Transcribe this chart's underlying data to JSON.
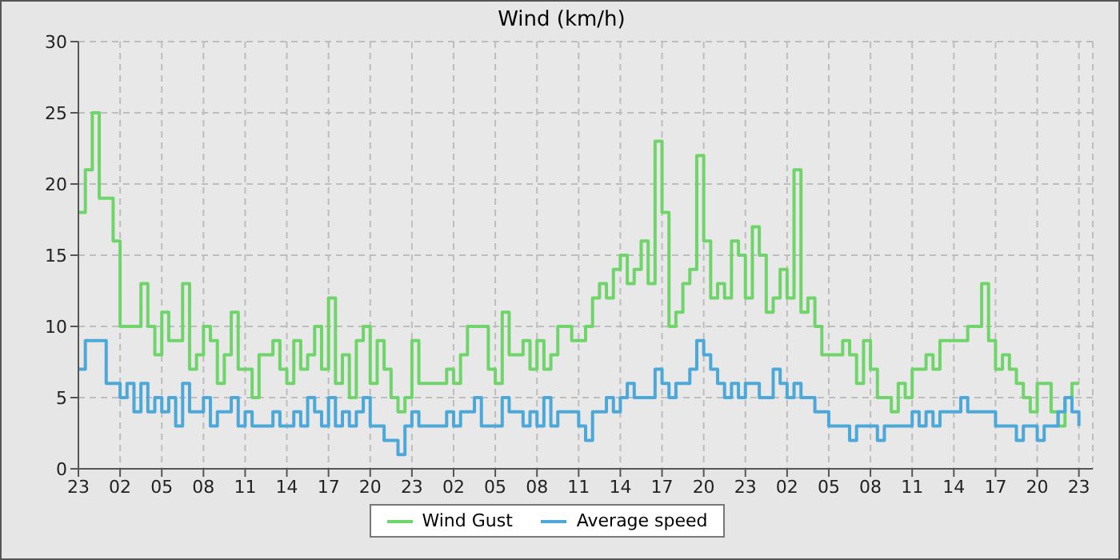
{
  "chart_data": {
    "type": "step",
    "title": "Wind (km/h)",
    "categories": [
      "23",
      null,
      null,
      null,
      null,
      null,
      "02",
      null,
      null,
      null,
      null,
      null,
      "05",
      null,
      null,
      null,
      null,
      null,
      "08",
      null,
      null,
      null,
      null,
      null,
      "11",
      null,
      null,
      null,
      null,
      null,
      "14",
      null,
      null,
      null,
      null,
      null,
      "17",
      null,
      null,
      null,
      null,
      null,
      "20",
      null,
      null,
      null,
      null,
      null,
      "23",
      null,
      null,
      null,
      null,
      null,
      "02",
      null,
      null,
      null,
      null,
      null,
      "05",
      null,
      null,
      null,
      null,
      null,
      "08",
      null,
      null,
      null,
      null,
      null,
      "11",
      null,
      null,
      null,
      null,
      null,
      "14",
      null,
      null,
      null,
      null,
      null,
      "17",
      null,
      null,
      null,
      null,
      null,
      "20",
      null,
      null,
      null,
      null,
      null,
      "23",
      null,
      null,
      null,
      null,
      null,
      "02",
      null,
      null,
      null,
      null,
      null,
      "05",
      null,
      null,
      null,
      null,
      null,
      "08",
      null,
      null,
      null,
      null,
      null,
      "11",
      null,
      null,
      null,
      null,
      null,
      "14",
      null,
      null,
      null,
      null,
      null,
      "17",
      null,
      null,
      null,
      null,
      null,
      "20",
      null,
      null,
      null,
      null,
      null,
      "23"
    ],
    "series": [
      {
        "name": "Wind Gust",
        "color": "#6fd46a",
        "values": [
          18,
          21,
          25,
          19,
          19,
          16,
          10,
          10,
          10,
          13,
          10,
          8,
          11,
          9,
          9,
          13,
          7,
          8,
          10,
          9,
          6,
          8,
          11,
          7,
          7,
          5,
          8,
          8,
          9,
          7,
          6,
          9,
          7,
          8,
          10,
          7,
          12,
          6,
          8,
          5,
          9,
          10,
          6,
          9,
          7,
          5,
          4,
          5,
          9,
          6,
          6,
          6,
          6,
          7,
          6,
          8,
          10,
          10,
          10,
          7,
          6,
          11,
          8,
          8,
          9,
          7,
          9,
          7,
          8,
          10,
          10,
          9,
          9,
          10,
          12,
          13,
          12,
          14,
          15,
          13,
          14,
          16,
          13,
          23,
          18,
          10,
          11,
          13,
          14,
          22,
          16,
          12,
          13,
          12,
          16,
          15,
          12,
          17,
          15,
          11,
          12,
          14,
          12,
          21,
          11,
          12,
          10,
          8,
          8,
          8,
          9,
          8,
          6,
          9,
          7,
          5,
          5,
          4,
          6,
          5,
          7,
          7,
          8,
          7,
          9,
          9,
          9,
          9,
          10,
          10,
          13,
          9,
          7,
          8,
          7,
          6,
          5,
          4,
          6,
          6,
          4,
          3,
          5,
          6,
          6
        ]
      },
      {
        "name": "Average speed",
        "color": "#4ba8d8",
        "values": [
          7,
          9,
          9,
          9,
          6,
          6,
          5,
          6,
          4,
          6,
          4,
          5,
          4,
          5,
          3,
          6,
          4,
          4,
          5,
          3,
          4,
          4,
          5,
          3,
          4,
          3,
          3,
          3,
          4,
          3,
          3,
          4,
          3,
          5,
          4,
          3,
          5,
          3,
          4,
          3,
          4,
          5,
          3,
          3,
          2,
          2,
          1,
          3,
          4,
          3,
          3,
          3,
          3,
          4,
          3,
          4,
          4,
          5,
          3,
          3,
          3,
          5,
          4,
          4,
          3,
          4,
          3,
          5,
          3,
          4,
          4,
          4,
          3,
          2,
          4,
          4,
          5,
          4,
          5,
          6,
          5,
          5,
          5,
          7,
          6,
          5,
          6,
          6,
          7,
          9,
          8,
          7,
          6,
          5,
          6,
          5,
          6,
          6,
          5,
          5,
          7,
          6,
          5,
          6,
          5,
          5,
          4,
          4,
          3,
          3,
          3,
          2,
          3,
          3,
          3,
          2,
          3,
          3,
          3,
          3,
          4,
          3,
          4,
          3,
          4,
          4,
          4,
          5,
          4,
          4,
          4,
          4,
          3,
          3,
          3,
          2,
          3,
          3,
          2,
          3,
          3,
          4,
          5,
          4,
          3
        ]
      }
    ],
    "ylim": [
      0,
      30
    ],
    "yticks": [
      0,
      5,
      10,
      15,
      20,
      25,
      30
    ],
    "grid": true,
    "legend": "bottom",
    "marker": "none"
  }
}
